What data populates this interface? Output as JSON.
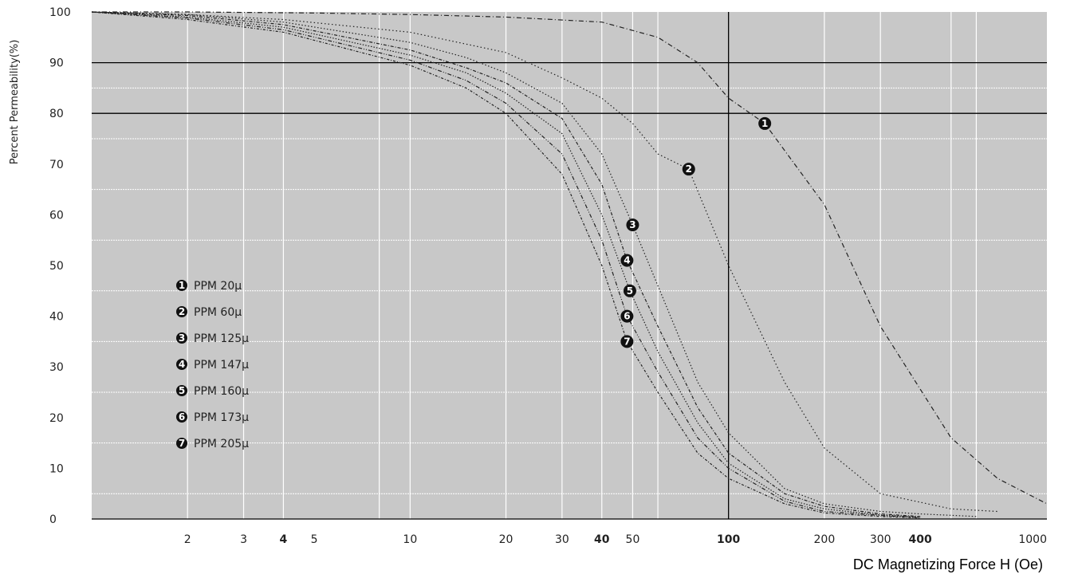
{
  "chart_data": {
    "type": "line",
    "xscale": "log",
    "xlim": [
      1,
      1000
    ],
    "ylim": [
      0,
      100
    ],
    "grid": true,
    "xlabel": "DC Magnetizing Force H (Oe)",
    "ylabel": "Percent Permeability(%)",
    "title": "",
    "xticks": [
      {
        "value": 2,
        "label": "2",
        "bold": false
      },
      {
        "value": 3,
        "label": "3",
        "bold": false
      },
      {
        "value": 4,
        "label": "4",
        "bold": true
      },
      {
        "value": 5,
        "label": "5",
        "bold": false
      },
      {
        "value": 10,
        "label": "10",
        "bold": false
      },
      {
        "value": 20,
        "label": "20",
        "bold": false
      },
      {
        "value": 30,
        "label": "30",
        "bold": false
      },
      {
        "value": 40,
        "label": "40",
        "bold": true
      },
      {
        "value": 50,
        "label": "50",
        "bold": false
      },
      {
        "value": 100,
        "label": "100",
        "bold": true
      },
      {
        "value": 200,
        "label": "200",
        "bold": false
      },
      {
        "value": 300,
        "label": "300",
        "bold": false
      },
      {
        "value": 400,
        "label": "400",
        "bold": true
      },
      {
        "value": 1000,
        "label": "1000",
        "bold": false
      }
    ],
    "yticks": [
      {
        "value": 0,
        "label": "0"
      },
      {
        "value": 10,
        "label": "10"
      },
      {
        "value": 20,
        "label": "20"
      },
      {
        "value": 30,
        "label": "30"
      },
      {
        "value": 40,
        "label": "40"
      },
      {
        "value": 50,
        "label": "50"
      },
      {
        "value": 60,
        "label": "60"
      },
      {
        "value": 70,
        "label": "70"
      },
      {
        "value": 80,
        "label": "80"
      },
      {
        "value": 90,
        "label": "90"
      },
      {
        "value": 100,
        "label": "100"
      }
    ],
    "grid_x": [
      2,
      3,
      4,
      8,
      10,
      20,
      30,
      40,
      50,
      60,
      200,
      300,
      500,
      600
    ],
    "grid_y_white": [
      5,
      15,
      25,
      35,
      45,
      55,
      65,
      75,
      85
    ],
    "ref_lines_y": [
      80,
      90
    ],
    "ref_lines_x": [
      100
    ],
    "series": [
      {
        "name": "PPM 20µ",
        "marker": "1",
        "marker_at": [
          130,
          78
        ],
        "x": [
          1,
          2,
          5,
          10,
          20,
          40,
          60,
          80,
          100,
          130,
          200,
          300,
          500,
          700,
          1000
        ],
        "y": [
          100,
          100,
          99.8,
          99.5,
          99,
          98,
          95,
          90,
          83,
          78,
          62,
          38,
          16,
          8,
          3
        ]
      },
      {
        "name": "PPM 60µ",
        "marker": "2",
        "marker_at": [
          75,
          69
        ],
        "x": [
          1,
          2,
          4,
          10,
          20,
          30,
          40,
          50,
          60,
          75,
          100,
          150,
          200,
          300,
          500,
          700
        ],
        "y": [
          100,
          99.5,
          98.5,
          96,
          92,
          87,
          83,
          78,
          72,
          69,
          50,
          27,
          14,
          5,
          2,
          1.5
        ]
      },
      {
        "name": "PPM 125µ",
        "marker": "3",
        "marker_at": [
          50,
          58
        ],
        "x": [
          1,
          2,
          4,
          10,
          15,
          20,
          30,
          40,
          50,
          60,
          80,
          100,
          150,
          200,
          300,
          400,
          600
        ],
        "y": [
          100,
          99.5,
          98,
          94,
          91,
          88,
          82,
          72,
          58,
          46,
          27,
          17,
          6,
          3,
          1.5,
          1,
          0.5
        ]
      },
      {
        "name": "PPM 147µ",
        "marker": "4",
        "marker_at": [
          48,
          51
        ],
        "x": [
          1,
          2,
          4,
          10,
          15,
          20,
          30,
          40,
          48,
          60,
          80,
          100,
          150,
          200,
          300,
          400
        ],
        "y": [
          100,
          99.3,
          97.5,
          92.5,
          89,
          86,
          79,
          66,
          51,
          38,
          22,
          13,
          5,
          2.5,
          1,
          0.5
        ]
      },
      {
        "name": "PPM 160µ",
        "marker": "5",
        "marker_at": [
          49,
          45
        ],
        "x": [
          1,
          2,
          4,
          10,
          15,
          20,
          30,
          40,
          49,
          60,
          80,
          100,
          150,
          200,
          300,
          400
        ],
        "y": [
          100,
          99,
          97,
          91.5,
          88,
          84,
          76,
          60,
          45,
          33,
          19,
          11,
          4,
          2,
          0.8,
          0.4
        ]
      },
      {
        "name": "PPM 173µ",
        "marker": "6",
        "marker_at": [
          48,
          40
        ],
        "x": [
          1,
          2,
          4,
          10,
          15,
          20,
          30,
          40,
          48,
          60,
          80,
          100,
          150,
          200,
          300,
          400
        ],
        "y": [
          100,
          98.8,
          96.5,
          90.5,
          86.5,
          82,
          72,
          55,
          40,
          29,
          16,
          10,
          3.5,
          1.5,
          0.7,
          0.3
        ]
      },
      {
        "name": "PPM 205µ",
        "marker": "7",
        "marker_at": [
          48,
          35
        ],
        "x": [
          1,
          2,
          4,
          10,
          15,
          20,
          30,
          40,
          48,
          60,
          80,
          100,
          150,
          200,
          300,
          400
        ],
        "y": [
          100,
          98.5,
          96,
          89.5,
          85,
          80,
          68,
          50,
          35,
          25,
          13,
          8,
          3,
          1.2,
          0.5,
          0.2
        ]
      }
    ],
    "legend": {
      "placement": "middle-left"
    }
  }
}
